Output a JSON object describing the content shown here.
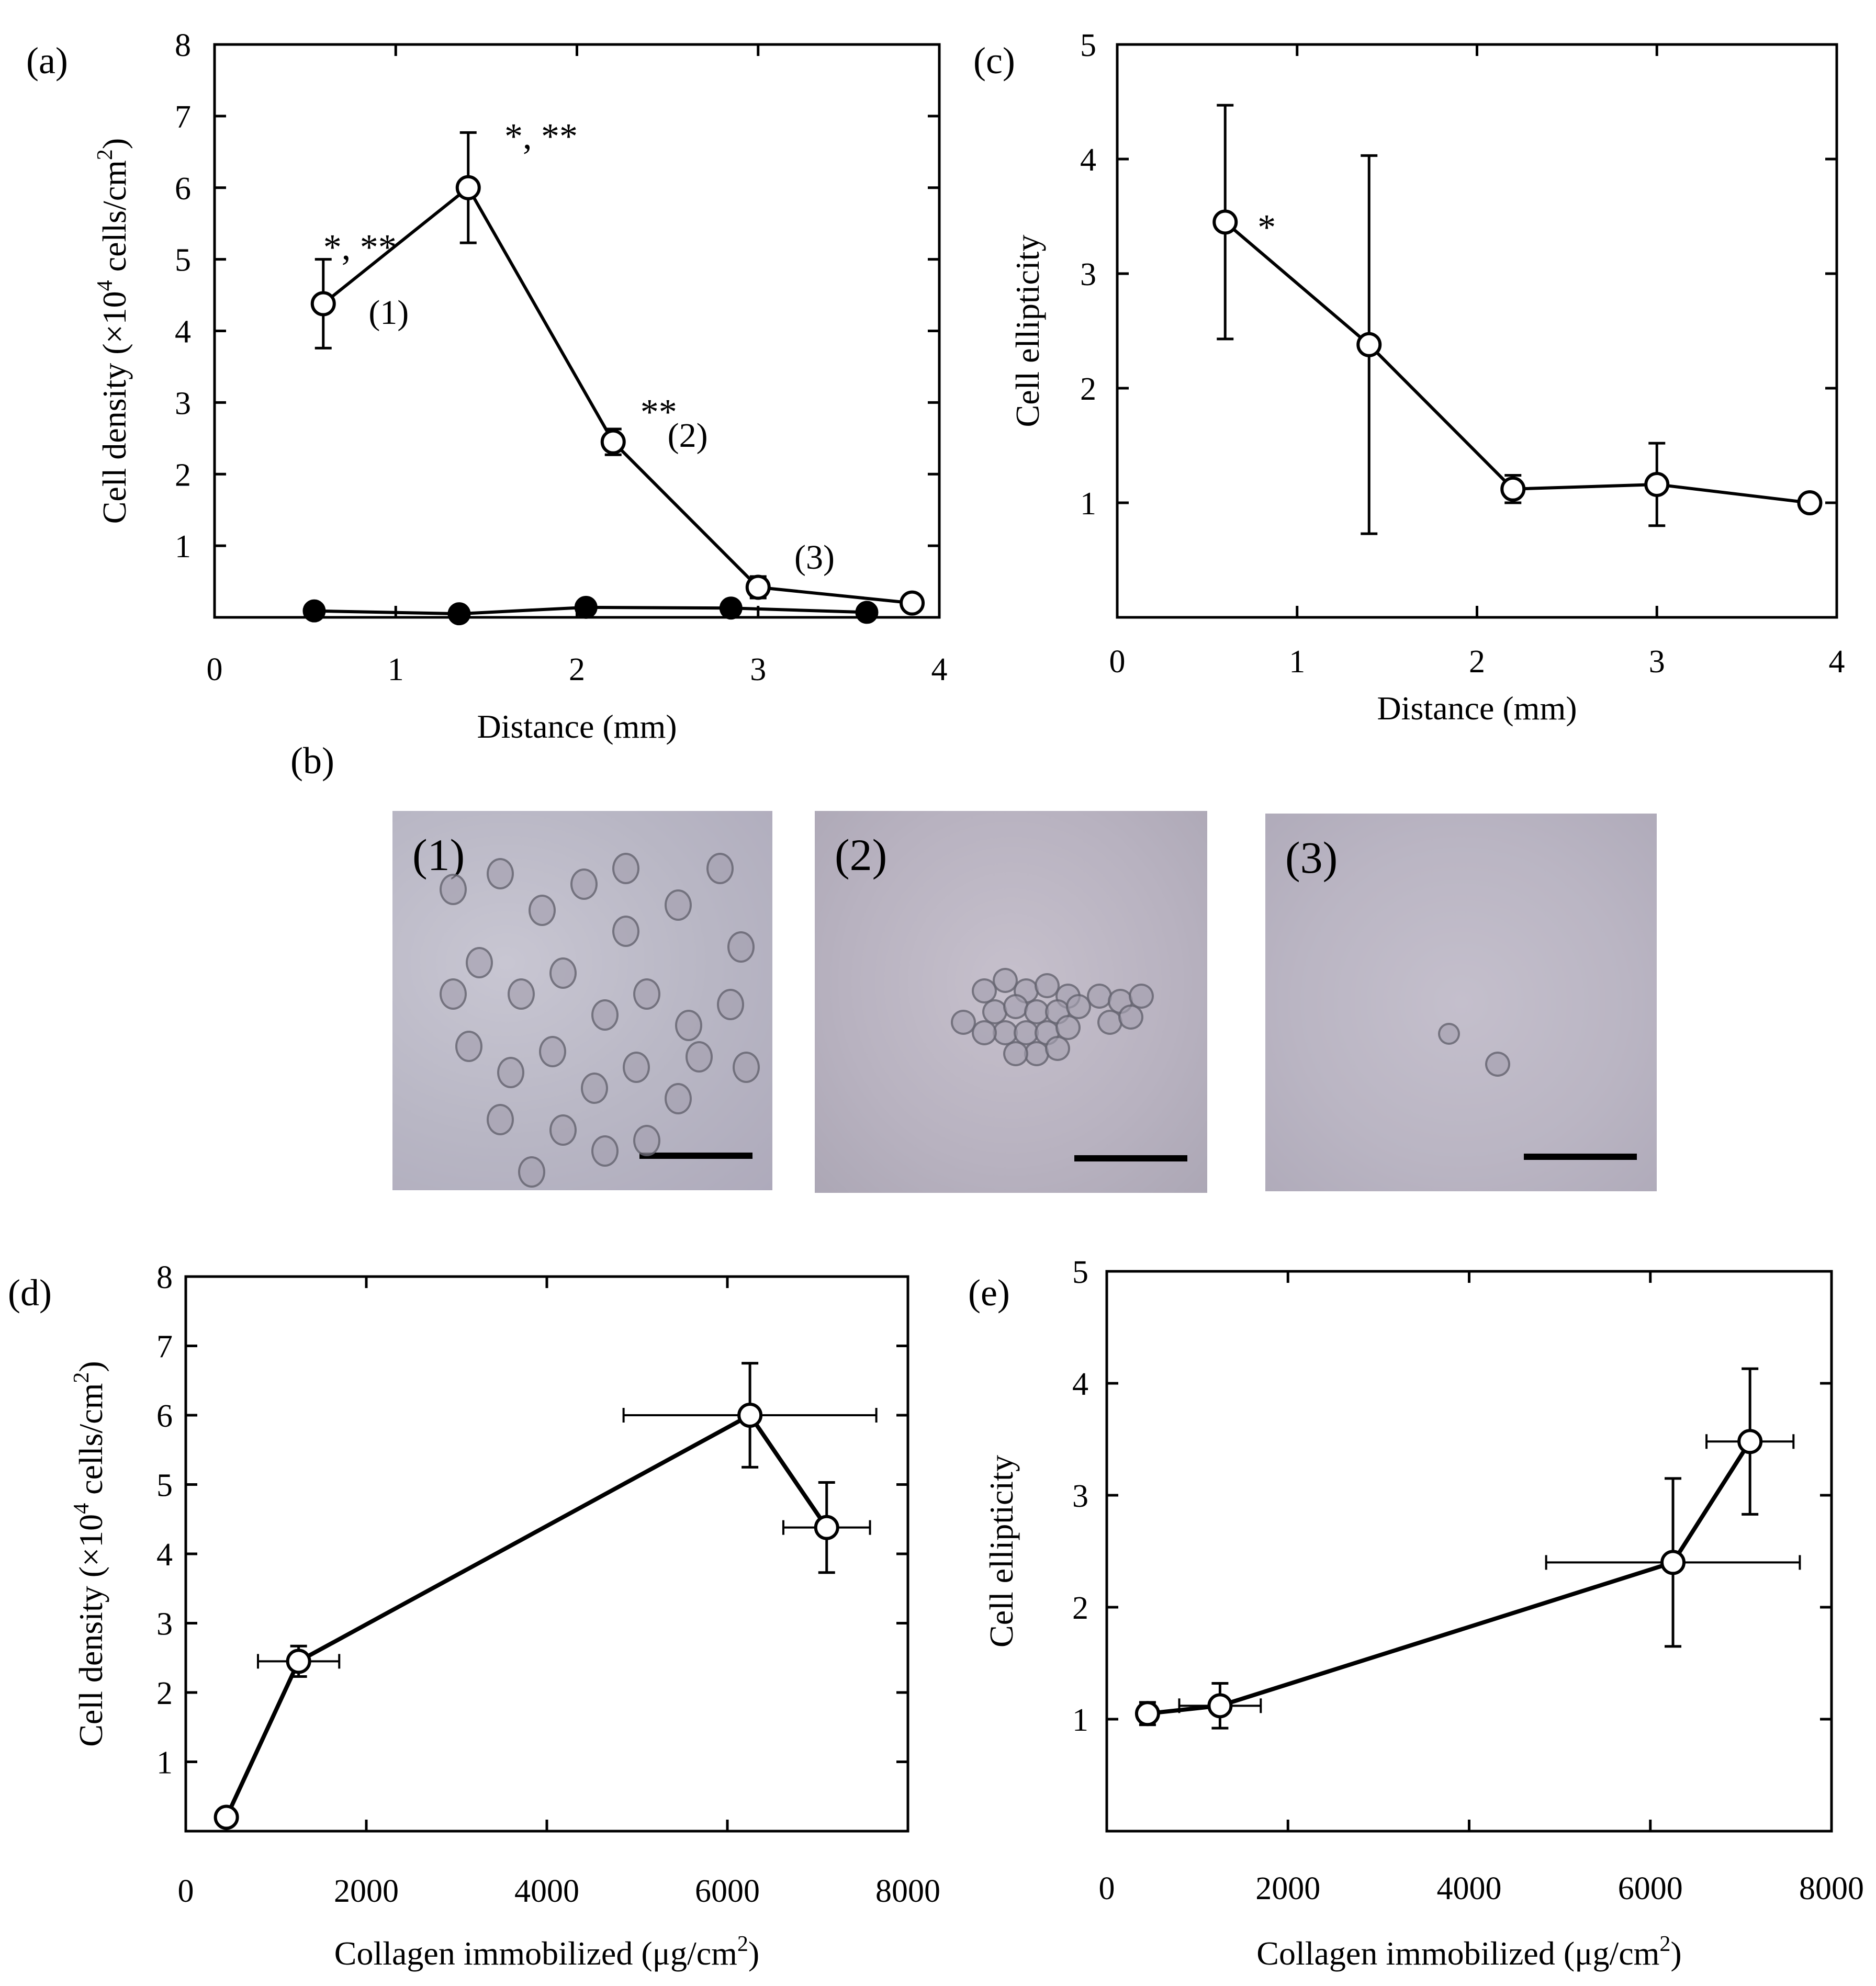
{
  "chart_data": [
    {
      "id": "a",
      "type": "line",
      "panel_label": "(a)",
      "xlabel": "Distance (mm)",
      "ylabel_main": "Cell density (×10",
      "ylabel_sup": "4",
      "ylabel_unit": " cells/cm",
      "ylabel_unit_sup": "2",
      "ylabel_close": ")",
      "xlim": [
        0,
        4
      ],
      "ylim": [
        0,
        8
      ],
      "xticks": [
        "0",
        "1",
        "2",
        "3",
        "4"
      ],
      "yticks": [
        "1",
        "2",
        "3",
        "4",
        "5",
        "6",
        "7",
        "8"
      ],
      "series": [
        {
          "name": "open",
          "marker": "open",
          "x": [
            0.6,
            1.4,
            2.2,
            3.0,
            3.85
          ],
          "y": [
            4.38,
            6.0,
            2.45,
            0.42,
            0.2
          ],
          "yerr": [
            0.62,
            0.77,
            0.18,
            0.15,
            0.0
          ]
        },
        {
          "name": "filled",
          "marker": "filled",
          "x": [
            0.55,
            1.35,
            2.05,
            2.85,
            3.6
          ],
          "y": [
            0.09,
            0.05,
            0.14,
            0.13,
            0.07
          ],
          "yerr": [
            0,
            0,
            0,
            0,
            0
          ]
        }
      ],
      "annotations": [
        {
          "text": "*, **",
          "x": 0.6,
          "y": 5.0,
          "style": "star"
        },
        {
          "text": "*, **",
          "x": 1.6,
          "y": 6.55,
          "style": "star"
        },
        {
          "text": "**",
          "x": 2.35,
          "y": 2.7,
          "style": "star"
        },
        {
          "text": "(1)",
          "x": 0.85,
          "y": 4.1,
          "style": "note"
        },
        {
          "text": "(2)",
          "x": 2.5,
          "y": 2.38,
          "style": "note"
        },
        {
          "text": "(3)",
          "x": 3.2,
          "y": 0.68,
          "style": "note"
        }
      ]
    },
    {
      "id": "c",
      "type": "line",
      "panel_label": "(c)",
      "xlabel": "Distance (mm)",
      "ylabel": "Cell ellipticity",
      "xlim": [
        0,
        4
      ],
      "ylim": [
        0,
        5
      ],
      "xticks": [
        "0",
        "1",
        "2",
        "3",
        "4"
      ],
      "yticks": [
        "1",
        "2",
        "3",
        "4",
        "5"
      ],
      "series": [
        {
          "name": "open",
          "marker": "open",
          "x": [
            0.6,
            1.4,
            2.2,
            3.0,
            3.85
          ],
          "y": [
            3.45,
            2.38,
            1.12,
            1.16,
            1.0
          ],
          "yerr": [
            1.02,
            1.65,
            0.12,
            0.36,
            0.05
          ]
        }
      ],
      "annotations": [
        {
          "text": "*",
          "x": 0.78,
          "y": 3.3,
          "style": "star"
        }
      ]
    },
    {
      "id": "d",
      "type": "scatter",
      "panel_label": "(d)",
      "xlabel_main": "Collagen immobilized (μg/cm",
      "xlabel_sup": "2",
      "xlabel_close": ")",
      "ylabel_main": "Cell density (×10",
      "ylabel_sup": "4",
      "ylabel_unit": " cells/cm",
      "ylabel_unit_sup": "2",
      "ylabel_close": ")",
      "xlim": [
        0,
        8000
      ],
      "ylim": [
        0,
        8
      ],
      "xticks": [
        "0",
        "2000",
        "4000",
        "6000",
        "8000"
      ],
      "yticks": [
        "1",
        "2",
        "3",
        "4",
        "5",
        "6",
        "7",
        "8"
      ],
      "series": [
        {
          "name": "open",
          "marker": "open",
          "x": [
            450,
            1250,
            6250,
            7100
          ],
          "y": [
            0.2,
            2.45,
            6.0,
            4.38
          ],
          "xerr": [
            0,
            450,
            1400,
            480
          ],
          "yerr": [
            0,
            0.22,
            0.75,
            0.65
          ]
        }
      ]
    },
    {
      "id": "e",
      "type": "scatter",
      "panel_label": "(e)",
      "xlabel_main": "Collagen immobilized (μg/cm",
      "xlabel_sup": "2",
      "xlabel_close": ")",
      "ylabel": "Cell ellipticity",
      "xlim": [
        0,
        8000
      ],
      "ylim": [
        0,
        5
      ],
      "xticks": [
        "0",
        "2000",
        "4000",
        "6000",
        "8000"
      ],
      "yticks": [
        "1",
        "2",
        "3",
        "4",
        "5"
      ],
      "series": [
        {
          "name": "open",
          "marker": "open",
          "x": [
            450,
            1250,
            6250,
            7100
          ],
          "y": [
            1.05,
            1.12,
            2.4,
            3.48
          ],
          "xerr": [
            0,
            450,
            1400,
            480
          ],
          "yerr": [
            0.1,
            0.2,
            0.75,
            0.65
          ]
        }
      ]
    }
  ],
  "micrographs": {
    "panel_label": "(b)",
    "labels": [
      "(1)",
      "(2)",
      "(3)"
    ]
  }
}
